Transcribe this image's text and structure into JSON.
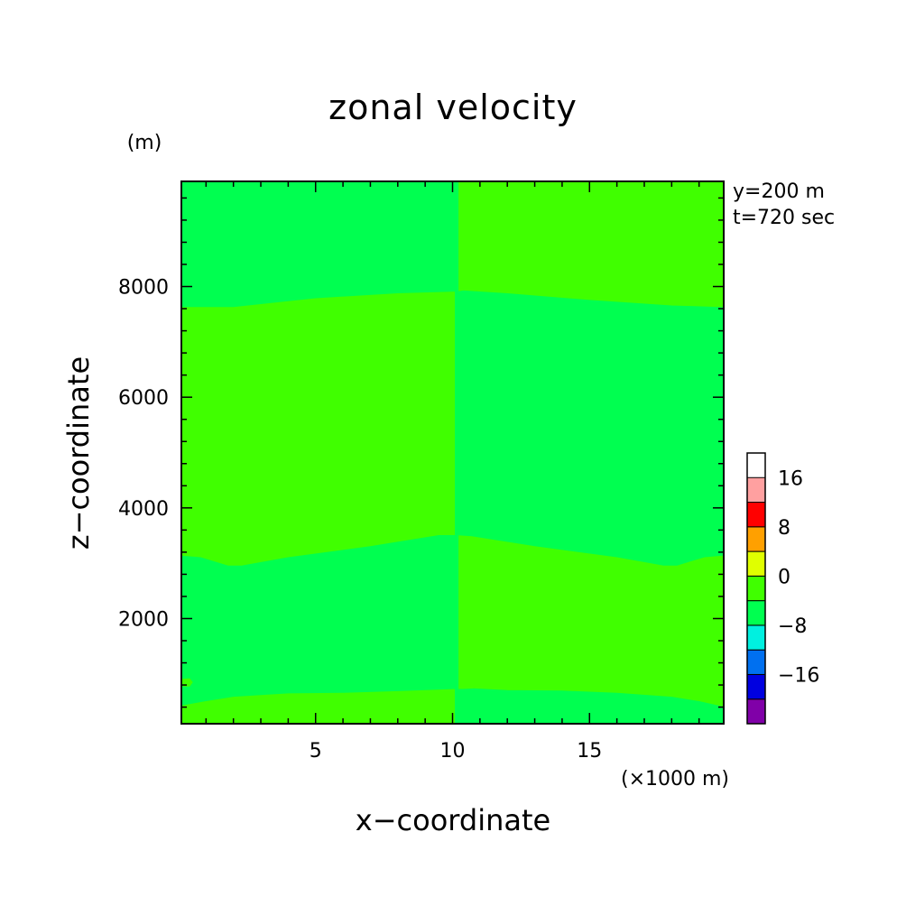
{
  "chart_data": {
    "type": "heatmap",
    "title": "zonal velocity",
    "xlabel": "x−coordinate",
    "ylabel": "z−coordinate",
    "x_unit": "(×1000 m)",
    "y_unit": "(m)",
    "annotations": [
      "y=200 m",
      "t=720 sec"
    ],
    "xlim": [
      0.1,
      19.9
    ],
    "ylim": [
      100,
      9900
    ],
    "x_ticks": [
      5,
      10,
      15
    ],
    "y_ticks": [
      2000,
      4000,
      6000,
      8000
    ],
    "x_tick_labels": [
      "5",
      "10",
      "15"
    ],
    "y_tick_labels": [
      "2000",
      "4000",
      "6000",
      "8000"
    ],
    "colorbar": {
      "levels": [
        -24,
        -20,
        -16,
        -12,
        -8,
        -4,
        0,
        4,
        8,
        12,
        16,
        20
      ],
      "colors": [
        "#8000a8",
        "#0000e0",
        "#0070f0",
        "#00f0e0",
        "#00ff50",
        "#40ff00",
        "#e0ff00",
        "#ffa000",
        "#ff0000",
        "#ffa0a0"
      ],
      "tick_values": [
        16,
        8,
        0,
        -8,
        -16
      ],
      "tick_labels": [
        "16",
        "8",
        "0",
        "−8",
        "−16"
      ]
    },
    "regions": [
      {
        "level_range": [
          -4,
          0
        ],
        "color": "#00ff50",
        "note": "top layer, left half",
        "outline": [
          [
            0.1,
            9900
          ],
          [
            10.1,
            9900
          ],
          [
            10.1,
            7900
          ],
          [
            8,
            7870
          ],
          [
            5,
            7780
          ],
          [
            2,
            7620
          ],
          [
            0.1,
            7620
          ]
        ]
      },
      {
        "level_range": [
          0,
          4
        ],
        "color": "#40ff00",
        "note": "top layer, right half",
        "outline": [
          [
            10.1,
            9900
          ],
          [
            19.9,
            9900
          ],
          [
            19.9,
            7620
          ],
          [
            18,
            7650
          ],
          [
            15,
            7750
          ],
          [
            12,
            7870
          ],
          [
            10.4,
            7920
          ],
          [
            10.1,
            7900
          ]
        ]
      },
      {
        "level_range": [
          0,
          4
        ],
        "color": "#40ff00",
        "note": "middle layer, left half",
        "outline": [
          [
            0.1,
            7620
          ],
          [
            2,
            7620
          ],
          [
            5,
            7780
          ],
          [
            8,
            7870
          ],
          [
            10.1,
            7900
          ],
          [
            10.1,
            3500
          ],
          [
            9.5,
            3500
          ],
          [
            7,
            3300
          ],
          [
            4,
            3100
          ],
          [
            2.3,
            2950
          ],
          [
            1.8,
            2950
          ],
          [
            0.8,
            3100
          ],
          [
            0.1,
            3130
          ]
        ]
      },
      {
        "level_range": [
          -4,
          0
        ],
        "color": "#00ff50",
        "note": "middle layer, right half",
        "outline": [
          [
            10.1,
            7900
          ],
          [
            10.4,
            7920
          ],
          [
            12,
            7870
          ],
          [
            15,
            7750
          ],
          [
            18,
            7650
          ],
          [
            19.9,
            7620
          ],
          [
            19.9,
            3130
          ],
          [
            19.2,
            3100
          ],
          [
            18.2,
            2950
          ],
          [
            17.7,
            2950
          ],
          [
            16,
            3100
          ],
          [
            13,
            3300
          ],
          [
            10.7,
            3480
          ],
          [
            10.1,
            3500
          ]
        ]
      },
      {
        "level_range": [
          -4,
          0
        ],
        "color": "#00ff50",
        "note": "lower layer, left half",
        "outline": [
          [
            0.1,
            3130
          ],
          [
            0.8,
            3100
          ],
          [
            1.8,
            2950
          ],
          [
            2.3,
            2950
          ],
          [
            4,
            3100
          ],
          [
            7,
            3300
          ],
          [
            9.5,
            3500
          ],
          [
            10.1,
            3500
          ],
          [
            10.1,
            720
          ],
          [
            8,
            680
          ],
          [
            6,
            650
          ],
          [
            4,
            640
          ],
          [
            2,
            580
          ],
          [
            1,
            500
          ],
          [
            0.1,
            420
          ]
        ]
      },
      {
        "level_range": [
          0,
          4
        ],
        "color": "#40ff00",
        "note": "lower layer, right half",
        "outline": [
          [
            10.1,
            3500
          ],
          [
            10.7,
            3480
          ],
          [
            13,
            3300
          ],
          [
            16,
            3100
          ],
          [
            17.7,
            2950
          ],
          [
            18.2,
            2950
          ],
          [
            19.2,
            3100
          ],
          [
            19.9,
            3130
          ],
          [
            19.9,
            400
          ],
          [
            19,
            500
          ],
          [
            18,
            580
          ],
          [
            16,
            650
          ],
          [
            14,
            690
          ],
          [
            12,
            700
          ],
          [
            10.8,
            730
          ],
          [
            10.4,
            720
          ],
          [
            10.1,
            720
          ]
        ]
      },
      {
        "level_range": [
          0,
          4
        ],
        "color": "#40ff00",
        "note": "bottom layer, left half",
        "outline": [
          [
            0.1,
            420
          ],
          [
            1,
            500
          ],
          [
            2,
            580
          ],
          [
            4,
            640
          ],
          [
            6,
            650
          ],
          [
            8,
            680
          ],
          [
            10.1,
            720
          ],
          [
            10.1,
            100
          ],
          [
            0.1,
            100
          ]
        ]
      },
      {
        "level_range": [
          -4,
          0
        ],
        "color": "#00ff50",
        "note": "bottom layer, right half",
        "outline": [
          [
            10.1,
            720
          ],
          [
            10.4,
            720
          ],
          [
            10.8,
            730
          ],
          [
            12,
            700
          ],
          [
            14,
            690
          ],
          [
            16,
            650
          ],
          [
            18,
            580
          ],
          [
            19,
            500
          ],
          [
            19.9,
            400
          ],
          [
            19.9,
            100
          ],
          [
            10.1,
            100
          ]
        ]
      },
      {
        "level_range": [
          0,
          4
        ],
        "color": "#40ff00",
        "note": "small patch near left edge",
        "outline": [
          [
            0.1,
            900
          ],
          [
            0.4,
            910
          ],
          [
            0.5,
            850
          ],
          [
            0.4,
            780
          ],
          [
            0.1,
            780
          ]
        ]
      },
      {
        "level_range": [
          -4,
          0
        ],
        "color": "#00ff50",
        "note": "narrow column at x=10",
        "outline": [
          [
            10.1,
            9900
          ],
          [
            10.2,
            9900
          ],
          [
            10.2,
            100
          ],
          [
            10.1,
            100
          ]
        ]
      }
    ]
  }
}
